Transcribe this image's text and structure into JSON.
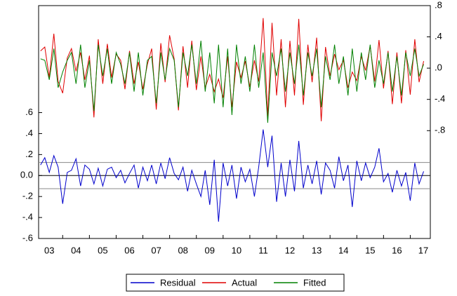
{
  "chart_data": {
    "type": "line",
    "x": [
      3.17,
      3.33,
      3.5,
      3.67,
      3.83,
      4,
      4.17,
      4.33,
      4.5,
      4.67,
      4.83,
      5,
      5.17,
      5.33,
      5.5,
      5.67,
      5.83,
      6,
      6.17,
      6.33,
      6.5,
      6.67,
      6.83,
      7,
      7.17,
      7.33,
      7.5,
      7.67,
      7.83,
      8,
      8.17,
      8.33,
      8.5,
      8.67,
      8.83,
      9,
      9.17,
      9.33,
      9.5,
      9.67,
      9.83,
      10,
      10.17,
      10.33,
      10.5,
      10.67,
      10.83,
      11,
      11.17,
      11.33,
      11.5,
      11.67,
      11.83,
      12,
      12.17,
      12.33,
      12.5,
      12.67,
      12.83,
      13,
      13.17,
      13.33,
      13.5,
      13.67,
      13.83,
      14,
      14.17,
      14.33,
      14.5,
      14.67,
      14.83,
      15,
      15.17,
      15.33,
      15.5,
      15.67,
      15.83,
      16,
      16.17,
      16.33,
      16.5,
      16.67,
      16.83,
      17,
      17.17,
      17.33,
      17.5
    ],
    "xlim": [
      3.1,
      17.75
    ],
    "xticks": [
      {
        "value": 3,
        "label": "03"
      },
      {
        "value": 4,
        "label": "04"
      },
      {
        "value": 5,
        "label": "05"
      },
      {
        "value": 6,
        "label": "06"
      },
      {
        "value": 7,
        "label": "07"
      },
      {
        "value": 8,
        "label": "08"
      },
      {
        "value": 9,
        "label": "09"
      },
      {
        "value": 10,
        "label": "10"
      },
      {
        "value": 11,
        "label": "11"
      },
      {
        "value": 12,
        "label": "12"
      },
      {
        "value": 13,
        "label": "13"
      },
      {
        "value": 14,
        "label": "14"
      },
      {
        "value": 15,
        "label": "15"
      },
      {
        "value": 16,
        "label": "16"
      },
      {
        "value": 17,
        "label": "17"
      }
    ],
    "ylim": [
      -0.6,
      1.62
    ],
    "yticks": [
      {
        "value": -0.6,
        "label": "-.6"
      },
      {
        "value": -0.4,
        "label": "-.4"
      },
      {
        "value": -0.2,
        "label": "-.2"
      },
      {
        "value": 0,
        "label": "0.0"
      },
      {
        "value": 0.2,
        "label": ".2"
      },
      {
        "value": 0.4,
        "label": ".4"
      },
      {
        "value": 0.6,
        "label": ".6"
      }
    ],
    "y2lim": [
      -2.18,
      0.8
    ],
    "y2ticks": [
      {
        "value": -0.8,
        "label": "-.8"
      },
      {
        "value": -0.4,
        "label": "-.4"
      },
      {
        "value": 0,
        "label": ".0"
      },
      {
        "value": 0.4,
        "label": ".4"
      },
      {
        "value": 0.8,
        "label": ".8"
      }
    ],
    "reference_lines": [
      -0.125,
      0,
      0.125
    ],
    "series": [
      {
        "name": "Residual",
        "color": "#0000cc",
        "values": [
          0.1,
          0.17,
          0.03,
          0.19,
          0.08,
          -0.27,
          0.03,
          0.05,
          0.16,
          -0.1,
          0.1,
          0.06,
          -0.08,
          0.07,
          -0.1,
          0.06,
          0.08,
          -0.02,
          0.05,
          -0.07,
          0.02,
          0.1,
          -0.12,
          0.08,
          -0.05,
          0.1,
          -0.08,
          0.12,
          -0.03,
          0.17,
          0.02,
          -0.04,
          0.08,
          -0.15,
          0.05,
          -0.08,
          -0.2,
          0.05,
          -0.28,
          0.15,
          -0.44,
          0.12,
          -0.1,
          0.1,
          -0.22,
          0.08,
          -0.06,
          0.06,
          -0.2,
          0.08,
          0.44,
          0.08,
          0.38,
          -0.25,
          0.12,
          -0.2,
          0.15,
          -0.15,
          0.33,
          -0.12,
          0.1,
          -0.08,
          0.14,
          -0.18,
          0.12,
          0.05,
          -0.12,
          0.18,
          -0.05,
          0.1,
          -0.3,
          0.14,
          -0.05,
          0.12,
          -0.02,
          0.08,
          0.26,
          -0.06,
          0.02,
          -0.16,
          0.05,
          -0.1,
          0.03,
          -0.24,
          0.12,
          -0.08,
          0.04
        ]
      },
      {
        "name": "Actual",
        "color": "#e00000",
        "axis": "y2",
        "values": [
          0.22,
          0.27,
          -0.12,
          0.44,
          -0.17,
          -0.32,
          0.13,
          0.25,
          -0.04,
          0.2,
          -0.15,
          0.16,
          -0.63,
          0.37,
          -0.2,
          0.31,
          -0.12,
          0.18,
          0.1,
          -0.27,
          0.22,
          -0.2,
          0.08,
          -0.27,
          0.05,
          0.25,
          -0.53,
          0.32,
          -0.18,
          0.42,
          0.12,
          -0.54,
          0.28,
          -0.25,
          0.35,
          -0.28,
          0.15,
          -0.25,
          -0.08,
          -0.3,
          -0.14,
          -0.38,
          0.15,
          -0.5,
          0.08,
          -0.12,
          0.09,
          -0.24,
          0.1,
          -0.17,
          0.64,
          -0.62,
          0.58,
          -0.35,
          0.37,
          -0.5,
          0.35,
          -0.35,
          0.63,
          -0.47,
          0.3,
          -0.18,
          0.39,
          -0.68,
          0.27,
          -0.1,
          0.18,
          -0.02,
          0.1,
          -0.25,
          -0.05,
          -0.16,
          0.15,
          -0.03,
          0.28,
          -0.17,
          0.36,
          -0.26,
          0.22,
          -0.46,
          0.2,
          -0.45,
          0.23,
          -0.34,
          0.37,
          -0.18,
          0.09
        ]
      },
      {
        "name": "Fitted",
        "color": "#008000",
        "axis": "y2",
        "values": [
          0.12,
          0.1,
          -0.15,
          0.25,
          -0.25,
          -0.05,
          0.1,
          0.2,
          -0.2,
          0.3,
          -0.25,
          0.1,
          -0.55,
          0.3,
          -0.1,
          0.25,
          -0.2,
          0.2,
          0.05,
          -0.2,
          0.2,
          -0.3,
          0.2,
          -0.35,
          0.1,
          0.15,
          -0.45,
          0.2,
          -0.15,
          0.25,
          0.1,
          -0.5,
          0.2,
          -0.1,
          0.3,
          -0.2,
          0.35,
          -0.3,
          0.2,
          -0.45,
          0.3,
          -0.5,
          0.25,
          -0.6,
          0.3,
          -0.2,
          0.15,
          -0.3,
          0.3,
          -0.25,
          0.2,
          -0.7,
          0.2,
          -0.1,
          0.25,
          -0.3,
          0.2,
          -0.2,
          0.3,
          -0.35,
          0.2,
          -0.1,
          0.25,
          -0.5,
          0.15,
          -0.15,
          0.3,
          -0.2,
          0.15,
          -0.35,
          0.25,
          -0.3,
          0.2,
          -0.15,
          0.3,
          -0.25,
          0.1,
          -0.2,
          0.2,
          -0.3,
          0.15,
          -0.35,
          0.2,
          -0.1,
          0.25,
          -0.1,
          0.05
        ]
      }
    ]
  }
}
